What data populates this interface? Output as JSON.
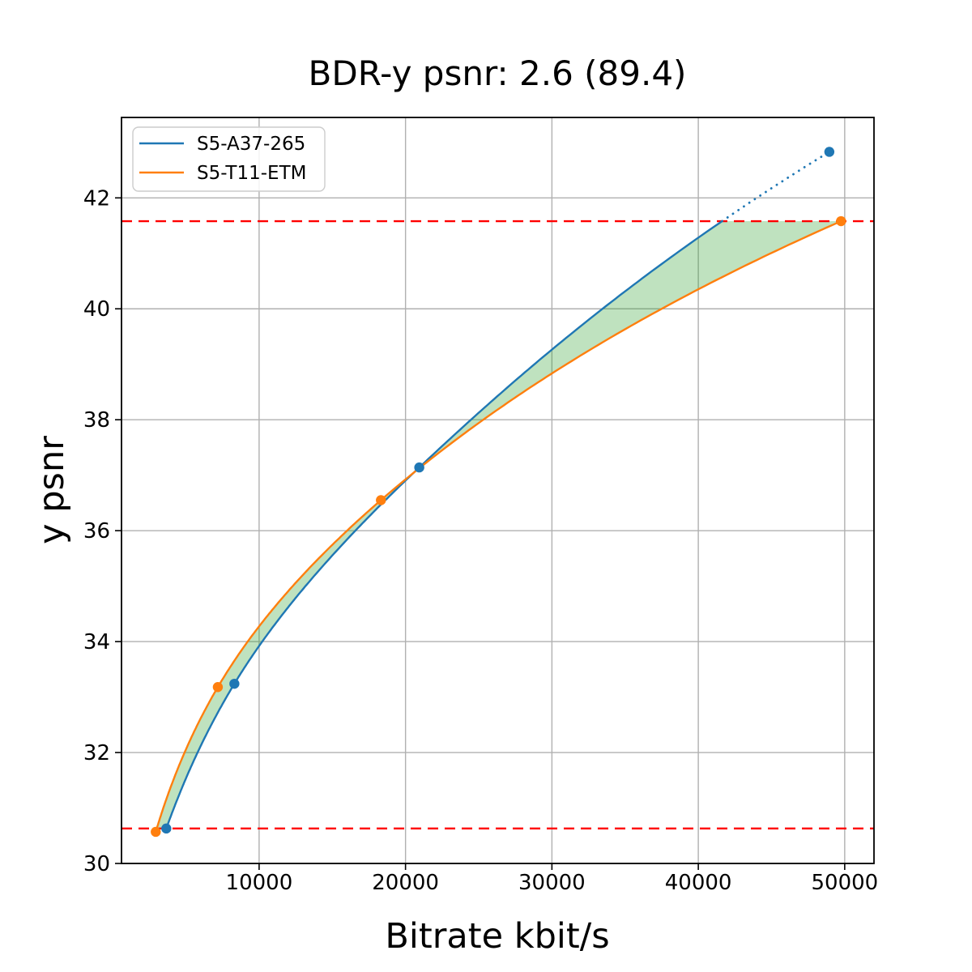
{
  "figure": {
    "background": "#ffffff"
  },
  "chart_data": {
    "type": "line",
    "title": "BDR-y psnr: 2.6 (89.4)",
    "xlabel": "Bitrate kbit/s",
    "ylabel": "y psnr",
    "xlim": [
      600,
      52000
    ],
    "ylim": [
      30,
      43.45
    ],
    "x_ticks": [
      10000,
      20000,
      30000,
      40000,
      50000
    ],
    "y_ticks": [
      30,
      32,
      34,
      36,
      38,
      40,
      42
    ],
    "grid": true,
    "grid_color": "#b0b0b0",
    "axes_edge_color": "#000000",
    "legend_position": "upper left",
    "series": [
      {
        "name": "S5-A37-265",
        "color": "#1f77b4",
        "marker": "circle",
        "style_note": "solid within overlap range, dotted above upper overlap line",
        "x": [
          3660,
          8310,
          20940,
          48950
        ],
        "y": [
          30.63,
          33.24,
          37.14,
          42.83
        ]
      },
      {
        "name": "S5-T11-ETM",
        "color": "#ff7f0e",
        "marker": "circle",
        "style_note": "solid",
        "x": [
          2940,
          7180,
          18320,
          49750
        ],
        "y": [
          30.57,
          33.18,
          36.55,
          41.58
        ]
      }
    ],
    "overlap_lines": {
      "style": "dashed",
      "color": "#ff0000",
      "lower": 30.63,
      "upper": 41.58
    },
    "shade": {
      "color": "#2ca02c",
      "alpha": 0.3,
      "between": "series curves from lower to upper overlap line"
    }
  }
}
